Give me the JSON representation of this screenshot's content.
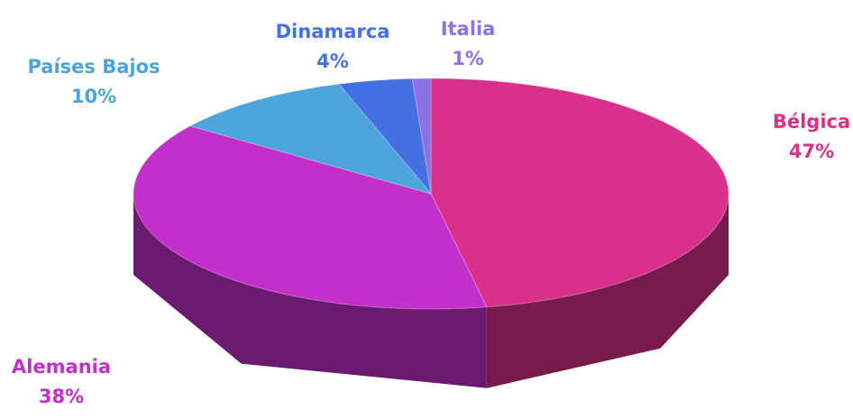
{
  "chart_data": {
    "type": "pie3d",
    "categories": [
      "Bélgica",
      "Alemania",
      "Países Bajos",
      "Dinamarca",
      "Italia"
    ],
    "values": [
      47,
      38,
      10,
      4,
      1
    ],
    "value_labels": [
      "47%",
      "38%",
      "10%",
      "4%",
      "1%"
    ],
    "colors": [
      "#d9318b",
      "#c22fcb",
      "#4ba4da",
      "#4470e2",
      "#8c72e2"
    ]
  }
}
